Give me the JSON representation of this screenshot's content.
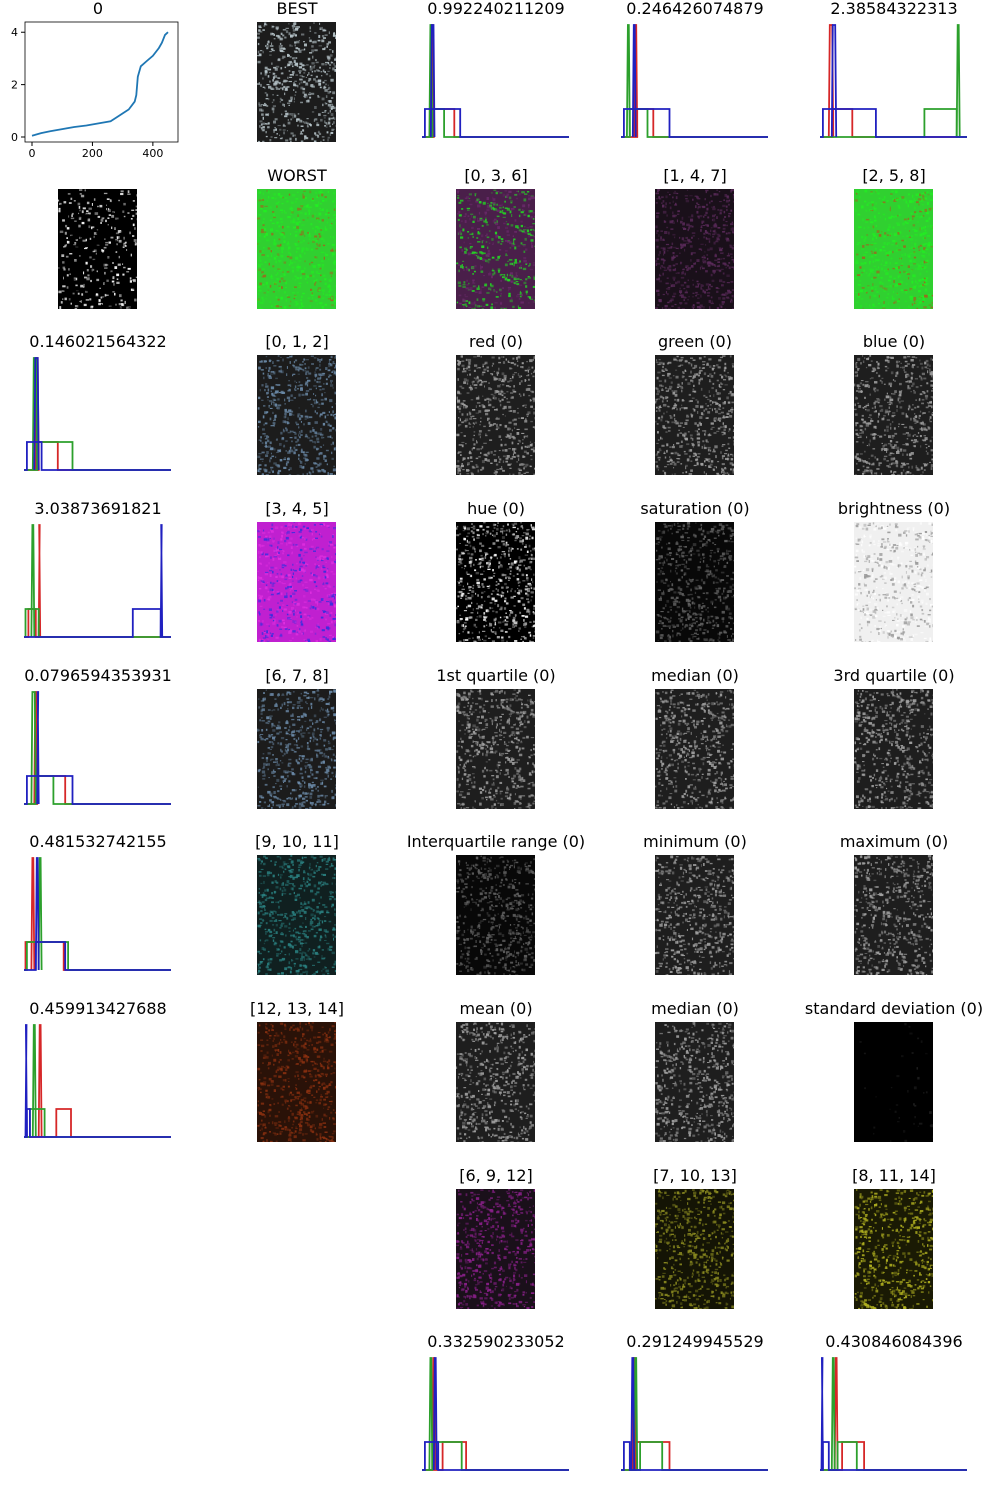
{
  "chart_data": [
    {
      "type": "line",
      "title": "0",
      "xlim": [
        0,
        460
      ],
      "ylim": [
        0,
        4.2
      ],
      "xticks": [
        "0",
        "200",
        "400"
      ],
      "yticks": [
        "0",
        "2",
        "4"
      ],
      "series": [
        {
          "color": "#1f77b4",
          "x": [
            0,
            10,
            30,
            60,
            100,
            140,
            180,
            220,
            260,
            280,
            300,
            320,
            330,
            340,
            345,
            350,
            360,
            380,
            400,
            420,
            430,
            440,
            450
          ],
          "y": [
            0.05,
            0.08,
            0.15,
            0.22,
            0.3,
            0.38,
            0.44,
            0.52,
            0.6,
            0.75,
            0.9,
            1.05,
            1.2,
            1.35,
            1.6,
            2.3,
            2.7,
            2.9,
            3.1,
            3.4,
            3.6,
            3.9,
            4.0
          ]
        }
      ]
    },
    {
      "type": "heatmap",
      "title": "BEST",
      "tint": "#b9c7cc",
      "style": "aerial"
    },
    {
      "type": "line",
      "title": "0.992240211209",
      "series": [
        {
          "color": "#d62728",
          "peak": [
            0.06,
            0.08
          ],
          "plateau": [
            0.08,
            0.22
          ]
        },
        {
          "color": "#2ca02c",
          "peak": [
            0.05,
            0.07
          ],
          "plateau": [
            0.07,
            0.15
          ]
        },
        {
          "color": "#2020c0",
          "peak": [
            0.06,
            0.085
          ],
          "plateau": [
            0.02,
            0.26
          ]
        }
      ]
    },
    {
      "type": "line",
      "title": "0.246426074879",
      "series": [
        {
          "color": "#d62728",
          "peak": [
            0.09,
            0.11
          ],
          "plateau": [
            0.11,
            0.22
          ]
        },
        {
          "color": "#2ca02c",
          "peak": [
            0.04,
            0.06
          ],
          "plateau": [
            0.06,
            0.18
          ]
        },
        {
          "color": "#2020c0",
          "peak": [
            0.08,
            0.1
          ],
          "plateau": [
            0.02,
            0.33
          ]
        }
      ]
    },
    {
      "type": "line",
      "title": "2.38584322313",
      "series": [
        {
          "color": "#d62728",
          "peak": [
            0.06,
            0.09
          ],
          "plateau": [
            0.09,
            0.22
          ]
        },
        {
          "color": "#2ca02c",
          "peak": [
            0.93,
            0.95
          ],
          "plateau": [
            0.71,
            0.93
          ]
        },
        {
          "color": "#2020c0",
          "peak": [
            0.08,
            0.11
          ],
          "plateau": [
            0.02,
            0.38
          ]
        }
      ]
    },
    {
      "type": "heatmap",
      "title": "",
      "tint": "#ffffff",
      "style": "binary"
    },
    {
      "type": "heatmap",
      "title": "WORST",
      "tint": "#22e022",
      "style": "green"
    },
    {
      "type": "heatmap",
      "title": "[0, 3, 6]",
      "tint": "#22e022",
      "style": "purplegreen"
    },
    {
      "type": "heatmap",
      "title": "[1, 4, 7]",
      "tint": "#5a2a5a",
      "style": "purple"
    },
    {
      "type": "heatmap",
      "title": "[2, 5, 8]",
      "tint": "#22e022",
      "style": "green"
    },
    {
      "type": "line",
      "title": "0.146021564322",
      "series": [
        {
          "color": "#d62728",
          "peak": [
            0.08,
            0.1
          ],
          "plateau": [
            0.1,
            0.23
          ]
        },
        {
          "color": "#2ca02c",
          "peak": [
            0.06,
            0.09
          ],
          "plateau": [
            0.09,
            0.33
          ]
        },
        {
          "color": "#2020c0",
          "peak": [
            0.07,
            0.1
          ],
          "plateau": [
            0.02,
            0.12
          ]
        }
      ]
    },
    {
      "type": "heatmap",
      "title": "[0, 1, 2]",
      "tint": "#6b8aa8",
      "style": "aerial"
    },
    {
      "type": "heatmap",
      "title": "red (0)",
      "tint": "#a0a0a0",
      "style": "gray"
    },
    {
      "type": "heatmap",
      "title": "green (0)",
      "tint": "#a0a0a0",
      "style": "gray"
    },
    {
      "type": "heatmap",
      "title": "blue (0)",
      "tint": "#a0a0a0",
      "style": "gray"
    },
    {
      "type": "line",
      "title": "3.03873691821",
      "series": [
        {
          "color": "#d62728",
          "peak": [
            0.1,
            0.11
          ],
          "plateau": [
            0.03,
            0.08
          ]
        },
        {
          "color": "#2ca02c",
          "peak": [
            0.05,
            0.07
          ],
          "plateau": [
            0.01,
            0.1
          ]
        },
        {
          "color": "#2020c0",
          "peak": [
            0.93,
            0.94
          ],
          "plateau": [
            0.74,
            0.93
          ]
        }
      ]
    },
    {
      "type": "heatmap",
      "title": "[3, 4, 5]",
      "tint": "#e020e0",
      "style": "magenta"
    },
    {
      "type": "heatmap",
      "title": "hue (0)",
      "tint": "#ffffff",
      "style": "hue"
    },
    {
      "type": "heatmap",
      "title": "saturation (0)",
      "tint": "#606060",
      "style": "dark"
    },
    {
      "type": "heatmap",
      "title": "brightness (0)",
      "tint": "#e8e8e8",
      "style": "light"
    },
    {
      "type": "line",
      "title": "0.0796594353931",
      "series": [
        {
          "color": "#d62728",
          "peak": [
            0.07,
            0.09
          ],
          "plateau": [
            0.09,
            0.28
          ]
        },
        {
          "color": "#2ca02c",
          "peak": [
            0.05,
            0.08
          ],
          "plateau": [
            0.08,
            0.2
          ]
        },
        {
          "color": "#2020c0",
          "peak": [
            0.09,
            0.1
          ],
          "plateau": [
            0.02,
            0.33
          ]
        }
      ]
    },
    {
      "type": "heatmap",
      "title": "[6, 7, 8]",
      "tint": "#6b8aa8",
      "style": "aerial"
    },
    {
      "type": "heatmap",
      "title": "1st quartile (0)",
      "tint": "#a0a0a0",
      "style": "gray"
    },
    {
      "type": "heatmap",
      "title": "median (0)",
      "tint": "#a0a0a0",
      "style": "gray"
    },
    {
      "type": "heatmap",
      "title": "3rd quartile (0)",
      "tint": "#a0a0a0",
      "style": "gray"
    },
    {
      "type": "line",
      "title": "0.481532742155",
      "series": [
        {
          "color": "#d62728",
          "peak": [
            0.05,
            0.07
          ],
          "plateau": [
            0.01,
            0.27
          ]
        },
        {
          "color": "#2ca02c",
          "peak": [
            0.1,
            0.12
          ],
          "plateau": [
            0.02,
            0.3
          ]
        },
        {
          "color": "#2020c0",
          "peak": [
            0.08,
            0.1
          ],
          "plateau": [
            0.08,
            0.28
          ]
        }
      ]
    },
    {
      "type": "heatmap",
      "title": "[9, 10, 11]",
      "tint": "#2a8080",
      "style": "teal"
    },
    {
      "type": "heatmap",
      "title": "Interquartile range (0)",
      "tint": "#606060",
      "style": "dark"
    },
    {
      "type": "heatmap",
      "title": "minimum (0)",
      "tint": "#a0a0a0",
      "style": "gray"
    },
    {
      "type": "heatmap",
      "title": "maximum (0)",
      "tint": "#a0a0a0",
      "style": "gray"
    },
    {
      "type": "line",
      "title": "0.459913427688",
      "series": [
        {
          "color": "#d62728",
          "peak": [
            0.1,
            0.12
          ],
          "plateau": [
            0.22,
            0.32
          ]
        },
        {
          "color": "#2ca02c",
          "peak": [
            0.06,
            0.08
          ],
          "plateau": [
            0.04,
            0.14
          ]
        },
        {
          "color": "#2020c0",
          "peak": [
            0.01,
            0.02
          ],
          "plateau": [
            0.02,
            0.04
          ]
        }
      ]
    },
    {
      "type": "heatmap",
      "title": "[12, 13, 14]",
      "tint": "#8a3010",
      "style": "red"
    },
    {
      "type": "heatmap",
      "title": "mean (0)",
      "tint": "#a0a0a0",
      "style": "gray"
    },
    {
      "type": "heatmap",
      "title": "median (0)",
      "tint": "#a0a0a0",
      "style": "gray"
    },
    {
      "type": "heatmap",
      "title": "standard deviation (0)",
      "tint": "#202020",
      "style": "black"
    },
    {
      "type": "heatmap",
      "title": "[6, 9, 12]",
      "tint": "#8a208a",
      "style": "purple"
    },
    {
      "type": "heatmap",
      "title": "[7, 10, 13]",
      "tint": "#8a8a20",
      "style": "olive"
    },
    {
      "type": "heatmap",
      "title": "[8, 11, 14]",
      "tint": "#b0b020",
      "style": "yellow"
    },
    {
      "type": "line",
      "title": "0.332590233052",
      "series": [
        {
          "color": "#d62728",
          "peak": [
            0.07,
            0.09
          ],
          "plateau": [
            0.14,
            0.3
          ]
        },
        {
          "color": "#2ca02c",
          "peak": [
            0.05,
            0.07
          ],
          "plateau": [
            0.07,
            0.27
          ]
        },
        {
          "color": "#2020c0",
          "peak": [
            0.08,
            0.1
          ],
          "plateau": [
            0.02,
            0.11
          ]
        }
      ]
    },
    {
      "type": "line",
      "title": "0.291249945529",
      "series": [
        {
          "color": "#d62728",
          "peak": [
            0.08,
            0.1
          ],
          "plateau": [
            0.1,
            0.33
          ]
        },
        {
          "color": "#2ca02c",
          "peak": [
            0.09,
            0.11
          ],
          "plateau": [
            0.13,
            0.28
          ]
        },
        {
          "color": "#2020c0",
          "peak": [
            0.07,
            0.09
          ],
          "plateau": [
            0.02,
            0.06
          ]
        }
      ]
    },
    {
      "type": "line",
      "title": "0.430846084396",
      "series": [
        {
          "color": "#d62728",
          "peak": [
            0.1,
            0.12
          ],
          "plateau": [
            0.15,
            0.3
          ]
        },
        {
          "color": "#2ca02c",
          "peak": [
            0.08,
            0.1
          ],
          "plateau": [
            0.12,
            0.25
          ]
        },
        {
          "color": "#2020c0",
          "peak": [
            0.01,
            0.02
          ],
          "plateau": [
            0.02,
            0.06
          ]
        }
      ]
    }
  ]
}
